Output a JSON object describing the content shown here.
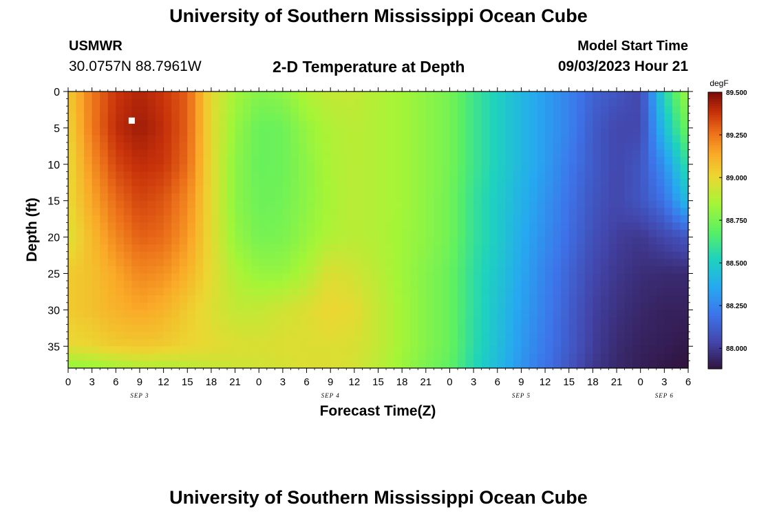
{
  "header": {
    "title": "University of Southern Mississippi Ocean Cube",
    "station_id": "USMWR",
    "station_coords": "30.0757N  88.7961W",
    "plot_title": "2-D Temperature at Depth",
    "model_start_label": "Model Start Time",
    "model_start_value": "09/03/2023 Hour 21"
  },
  "footer": {
    "title": "University of Southern Mississippi Ocean Cube"
  },
  "chart_data": {
    "type": "heatmap",
    "xlabel": "Forecast Time(Z)",
    "ylabel": "Depth (ft)",
    "x_ticks": [
      "0",
      "3",
      "6",
      "9",
      "12",
      "15",
      "18",
      "21",
      "0",
      "3",
      "6",
      "9",
      "12",
      "15",
      "18",
      "21",
      "0",
      "3",
      "6",
      "9",
      "12",
      "15",
      "18",
      "21",
      "0",
      "3",
      "6"
    ],
    "date_labels": [
      {
        "label": "SEP 3",
        "at_hour": 9
      },
      {
        "label": "SEP 4",
        "at_hour": 33
      },
      {
        "label": "SEP 5",
        "at_hour": 57
      },
      {
        "label": "SEP 6",
        "at_hour": 75
      }
    ],
    "x_range_hours": [
      0,
      78
    ],
    "y_ticks": [
      0,
      5,
      10,
      15,
      20,
      25,
      30,
      35
    ],
    "ylim": [
      0,
      38
    ],
    "y_inverted": true,
    "colorbar": {
      "unit": "degF",
      "ticks": [
        "89.500",
        "89.250",
        "89.000",
        "88.750",
        "88.500",
        "88.250",
        "88.000"
      ],
      "range": [
        87.88,
        89.5
      ]
    },
    "marker": {
      "hour": 8,
      "depth_ft": 4
    },
    "notes": "Temperature field sampled at hour 0..78 (step 3) for depth 0..38 ft; values in degF.",
    "depth_samples_ft": [
      0,
      5,
      10,
      15,
      20,
      25,
      30,
      35,
      38
    ],
    "hour_samples": [
      0,
      3,
      6,
      9,
      12,
      15,
      18,
      21,
      24,
      27,
      30,
      33,
      36,
      39,
      42,
      45,
      48,
      51,
      54,
      57,
      60,
      63,
      66,
      69,
      72,
      75,
      78
    ],
    "temperature_grid_degF": [
      [
        89.05,
        89.25,
        89.38,
        89.42,
        89.38,
        89.3,
        89.0,
        88.85,
        88.78,
        88.8,
        88.88,
        88.92,
        88.92,
        88.88,
        88.85,
        88.8,
        88.75,
        88.62,
        88.52,
        88.42,
        88.33,
        88.25,
        88.15,
        88.1,
        88.05,
        88.55,
        88.85
      ],
      [
        89.02,
        89.25,
        89.4,
        89.45,
        89.4,
        89.3,
        89.0,
        88.82,
        88.72,
        88.73,
        88.82,
        88.88,
        88.9,
        88.88,
        88.85,
        88.8,
        88.75,
        88.62,
        88.52,
        88.42,
        88.33,
        88.25,
        88.12,
        88.05,
        88.05,
        88.45,
        88.75
      ],
      [
        89.0,
        89.2,
        89.35,
        89.4,
        89.38,
        89.28,
        89.0,
        88.8,
        88.72,
        88.73,
        88.8,
        88.87,
        88.9,
        88.88,
        88.85,
        88.8,
        88.75,
        88.62,
        88.52,
        88.42,
        88.33,
        88.22,
        88.12,
        88.05,
        88.1,
        88.3,
        88.6
      ],
      [
        89.0,
        89.15,
        89.28,
        89.35,
        89.32,
        89.22,
        89.0,
        88.8,
        88.73,
        88.74,
        88.8,
        88.86,
        88.9,
        88.88,
        88.85,
        88.8,
        88.74,
        88.6,
        88.5,
        88.4,
        88.3,
        88.2,
        88.1,
        88.05,
        88.1,
        88.2,
        88.45
      ],
      [
        88.97,
        89.1,
        89.22,
        89.3,
        89.28,
        89.18,
        89.0,
        88.82,
        88.75,
        88.76,
        88.82,
        88.88,
        88.9,
        88.88,
        88.84,
        88.8,
        88.74,
        88.6,
        88.5,
        88.38,
        88.28,
        88.18,
        88.08,
        88.02,
        88.0,
        88.05,
        88.1
      ],
      [
        89.05,
        89.08,
        89.15,
        89.22,
        89.2,
        89.12,
        89.0,
        88.88,
        88.82,
        88.82,
        88.88,
        88.98,
        88.95,
        88.9,
        88.84,
        88.78,
        88.72,
        88.58,
        88.48,
        88.36,
        88.25,
        88.15,
        88.05,
        88.0,
        87.97,
        87.96,
        87.96
      ],
      [
        89.05,
        89.08,
        89.12,
        89.15,
        89.12,
        89.05,
        88.98,
        88.92,
        88.92,
        88.95,
        88.98,
        89.02,
        89.0,
        88.92,
        88.85,
        88.78,
        88.72,
        88.58,
        88.46,
        88.34,
        88.24,
        88.13,
        88.03,
        87.98,
        87.95,
        87.93,
        87.93
      ],
      [
        89.0,
        89.02,
        89.05,
        89.06,
        89.05,
        89.02,
        89.0,
        88.98,
        88.97,
        88.98,
        88.98,
        88.98,
        88.97,
        88.92,
        88.85,
        88.78,
        88.72,
        88.57,
        88.45,
        88.32,
        88.22,
        88.12,
        88.02,
        87.96,
        87.93,
        87.92,
        87.9
      ],
      [
        88.8,
        88.82,
        88.85,
        88.88,
        88.88,
        88.9,
        88.92,
        88.94,
        88.95,
        88.96,
        88.98,
        88.98,
        88.96,
        88.9,
        88.83,
        88.76,
        88.7,
        88.55,
        88.43,
        88.3,
        88.2,
        88.1,
        88.0,
        87.95,
        87.92,
        87.9,
        87.88
      ]
    ]
  }
}
